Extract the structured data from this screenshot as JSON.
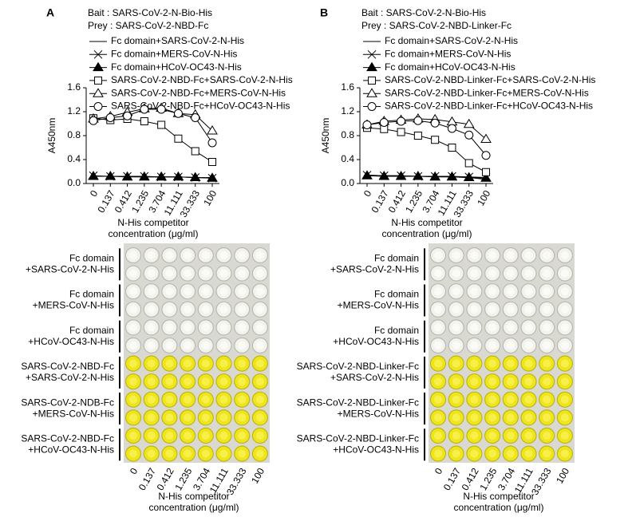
{
  "chart_data": [
    {
      "type": "line",
      "panel_label": "A",
      "annotations": [
        "Bait : SARS-CoV-2-N-Bio-His",
        "Prey : SARS-CoV-2-NBD-Fc"
      ],
      "ylabel": "A450nm",
      "xlabel": [
        "N-His competitor",
        "concentration (μg/ml)"
      ],
      "categories": [
        "0",
        "0.137",
        "0.412",
        "1.235",
        "3.704",
        "11.111",
        "33.333",
        "100"
      ],
      "ylim": [
        0,
        1.6
      ],
      "yticks": [
        0,
        0.4,
        0.8,
        1.2,
        1.6
      ],
      "yticklabels": [
        "0.0",
        "0.4",
        "0.8",
        "1.2",
        "1.6"
      ],
      "series": [
        {
          "name": "Fc domain+SARS-CoV-2-N-His",
          "color": "#000000",
          "marker": "none",
          "values": [
            0.12,
            0.12,
            0.12,
            0.11,
            0.11,
            0.11,
            0.1,
            0.1
          ]
        },
        {
          "name": "Fc domain+MERS-CoV-N-His",
          "color": "#000000",
          "marker": "x",
          "values": [
            0.13,
            0.12,
            0.12,
            0.12,
            0.11,
            0.11,
            0.1,
            0.09
          ]
        },
        {
          "name": "Fc domain+HCoV-OC43-N-His",
          "color": "#000000",
          "marker": "triangle-filled",
          "values": [
            0.12,
            0.12,
            0.11,
            0.11,
            0.11,
            0.11,
            0.1,
            0.09
          ]
        },
        {
          "name": "SARS-CoV-2-NBD-Fc+SARS-CoV-2-N-His",
          "color": "#000000",
          "marker": "square",
          "values": [
            1.09,
            1.06,
            1.08,
            1.04,
            0.98,
            0.75,
            0.54,
            0.36
          ]
        },
        {
          "name": "SARS-CoV-2-NBD-Fc+MERS-CoV-N-His",
          "color": "#000000",
          "marker": "triangle",
          "values": [
            1.08,
            1.12,
            1.19,
            1.25,
            1.26,
            1.17,
            1.15,
            0.88
          ]
        },
        {
          "name": "SARS-CoV-2-NBD-Fc+HCoV-OC43-N-His",
          "color": "#000000",
          "marker": "circle",
          "values": [
            1.05,
            1.1,
            1.13,
            1.24,
            1.24,
            1.17,
            1.1,
            0.68
          ]
        }
      ]
    },
    {
      "type": "line",
      "panel_label": "B",
      "annotations": [
        "Bait : SARS-CoV-2-N-Bio-His",
        "Prey : SARS-CoV-2-NBD-Linker-Fc"
      ],
      "ylabel": "A450nm",
      "xlabel": [
        "N-His competitor",
        "concentration (μg/ml)"
      ],
      "categories": [
        "0",
        "0.137",
        "0.412",
        "1.235",
        "3.704",
        "11.111",
        "33.333",
        "100"
      ],
      "ylim": [
        0,
        1.6
      ],
      "yticks": [
        0,
        0.4,
        0.8,
        1.2,
        1.6
      ],
      "yticklabels": [
        "0.0",
        "0.4",
        "0.8",
        "1.2",
        "1.6"
      ],
      "series": [
        {
          "name": "Fc domain+SARS-CoV-2-N-His",
          "color": "#000000",
          "marker": "none",
          "values": [
            0.14,
            0.13,
            0.13,
            0.12,
            0.12,
            0.11,
            0.1,
            0.07
          ]
        },
        {
          "name": "Fc domain+MERS-CoV-N-His",
          "color": "#000000",
          "marker": "x",
          "values": [
            0.14,
            0.13,
            0.13,
            0.12,
            0.12,
            0.12,
            0.11,
            0.1
          ]
        },
        {
          "name": "Fc domain+HCoV-OC43-N-His",
          "color": "#000000",
          "marker": "triangle-filled",
          "values": [
            0.13,
            0.12,
            0.12,
            0.12,
            0.11,
            0.11,
            0.1,
            0.09
          ]
        },
        {
          "name": "SARS-CoV-2-NBD-Linker-Fc+SARS-CoV-2-N-His",
          "color": "#000000",
          "marker": "square",
          "values": [
            0.93,
            0.91,
            0.86,
            0.8,
            0.73,
            0.6,
            0.34,
            0.19
          ]
        },
        {
          "name": "SARS-CoV-2-NBD-Linker-Fc+MERS-CoV-N-His",
          "color": "#000000",
          "marker": "triangle",
          "values": [
            0.98,
            1.04,
            1.06,
            1.08,
            1.07,
            1.03,
            0.99,
            0.74
          ]
        },
        {
          "name": "SARS-CoV-2-NBD-Linker-Fc+HCoV-OC43-N-His",
          "color": "#000000",
          "marker": "circle",
          "values": [
            0.98,
            1.02,
            1.04,
            1.05,
            1.01,
            0.92,
            0.81,
            0.47
          ]
        }
      ]
    }
  ],
  "plates": [
    {
      "rows": [
        [
          "Fc domain",
          "+SARS-CoV-2-N-His"
        ],
        [
          "Fc domain",
          "+MERS-CoV-N-His"
        ],
        [
          "Fc domain",
          "+HCoV-OC43-N-His"
        ],
        [
          "SARS-CoV-2-NBD-Fc",
          "+SARS-CoV-2-N-His"
        ],
        [
          "SARS-CoV-2-NDB-Fc",
          "+MERS-CoV-N-His"
        ],
        [
          "SARS-CoV-2-NBD-Fc",
          "+HCoV-OC43-N-His"
        ]
      ],
      "columns": [
        "0",
        "0.137",
        "0.412",
        "1.235",
        "3.704",
        "11.111",
        "33.333",
        "100"
      ],
      "xlabel": [
        "N-His competitor",
        "concentration (μg/ml)"
      ]
    },
    {
      "rows": [
        [
          "Fc domain",
          "+SARS-CoV-2-N-His"
        ],
        [
          "Fc domain",
          "+MERS-CoV-N-His"
        ],
        [
          "Fc domain",
          "+HCoV-OC43-N-His"
        ],
        [
          "SARS-CoV-2-NBD-Linker-Fc",
          "+SARS-CoV-2-N-His"
        ],
        [
          "SARS-CoV-2-NBD-Linker-Fc",
          "+MERS-CoV-N-His"
        ],
        [
          "SARS-CoV-2-NBD-Linker-Fc",
          "+HCoV-OC43-N-His"
        ]
      ],
      "columns": [
        "0",
        "0.137",
        "0.412",
        "1.235",
        "3.704",
        "11.111",
        "33.333",
        "100"
      ],
      "xlabel": [
        "N-His competitor",
        "concentration (μg/ml)"
      ]
    }
  ]
}
